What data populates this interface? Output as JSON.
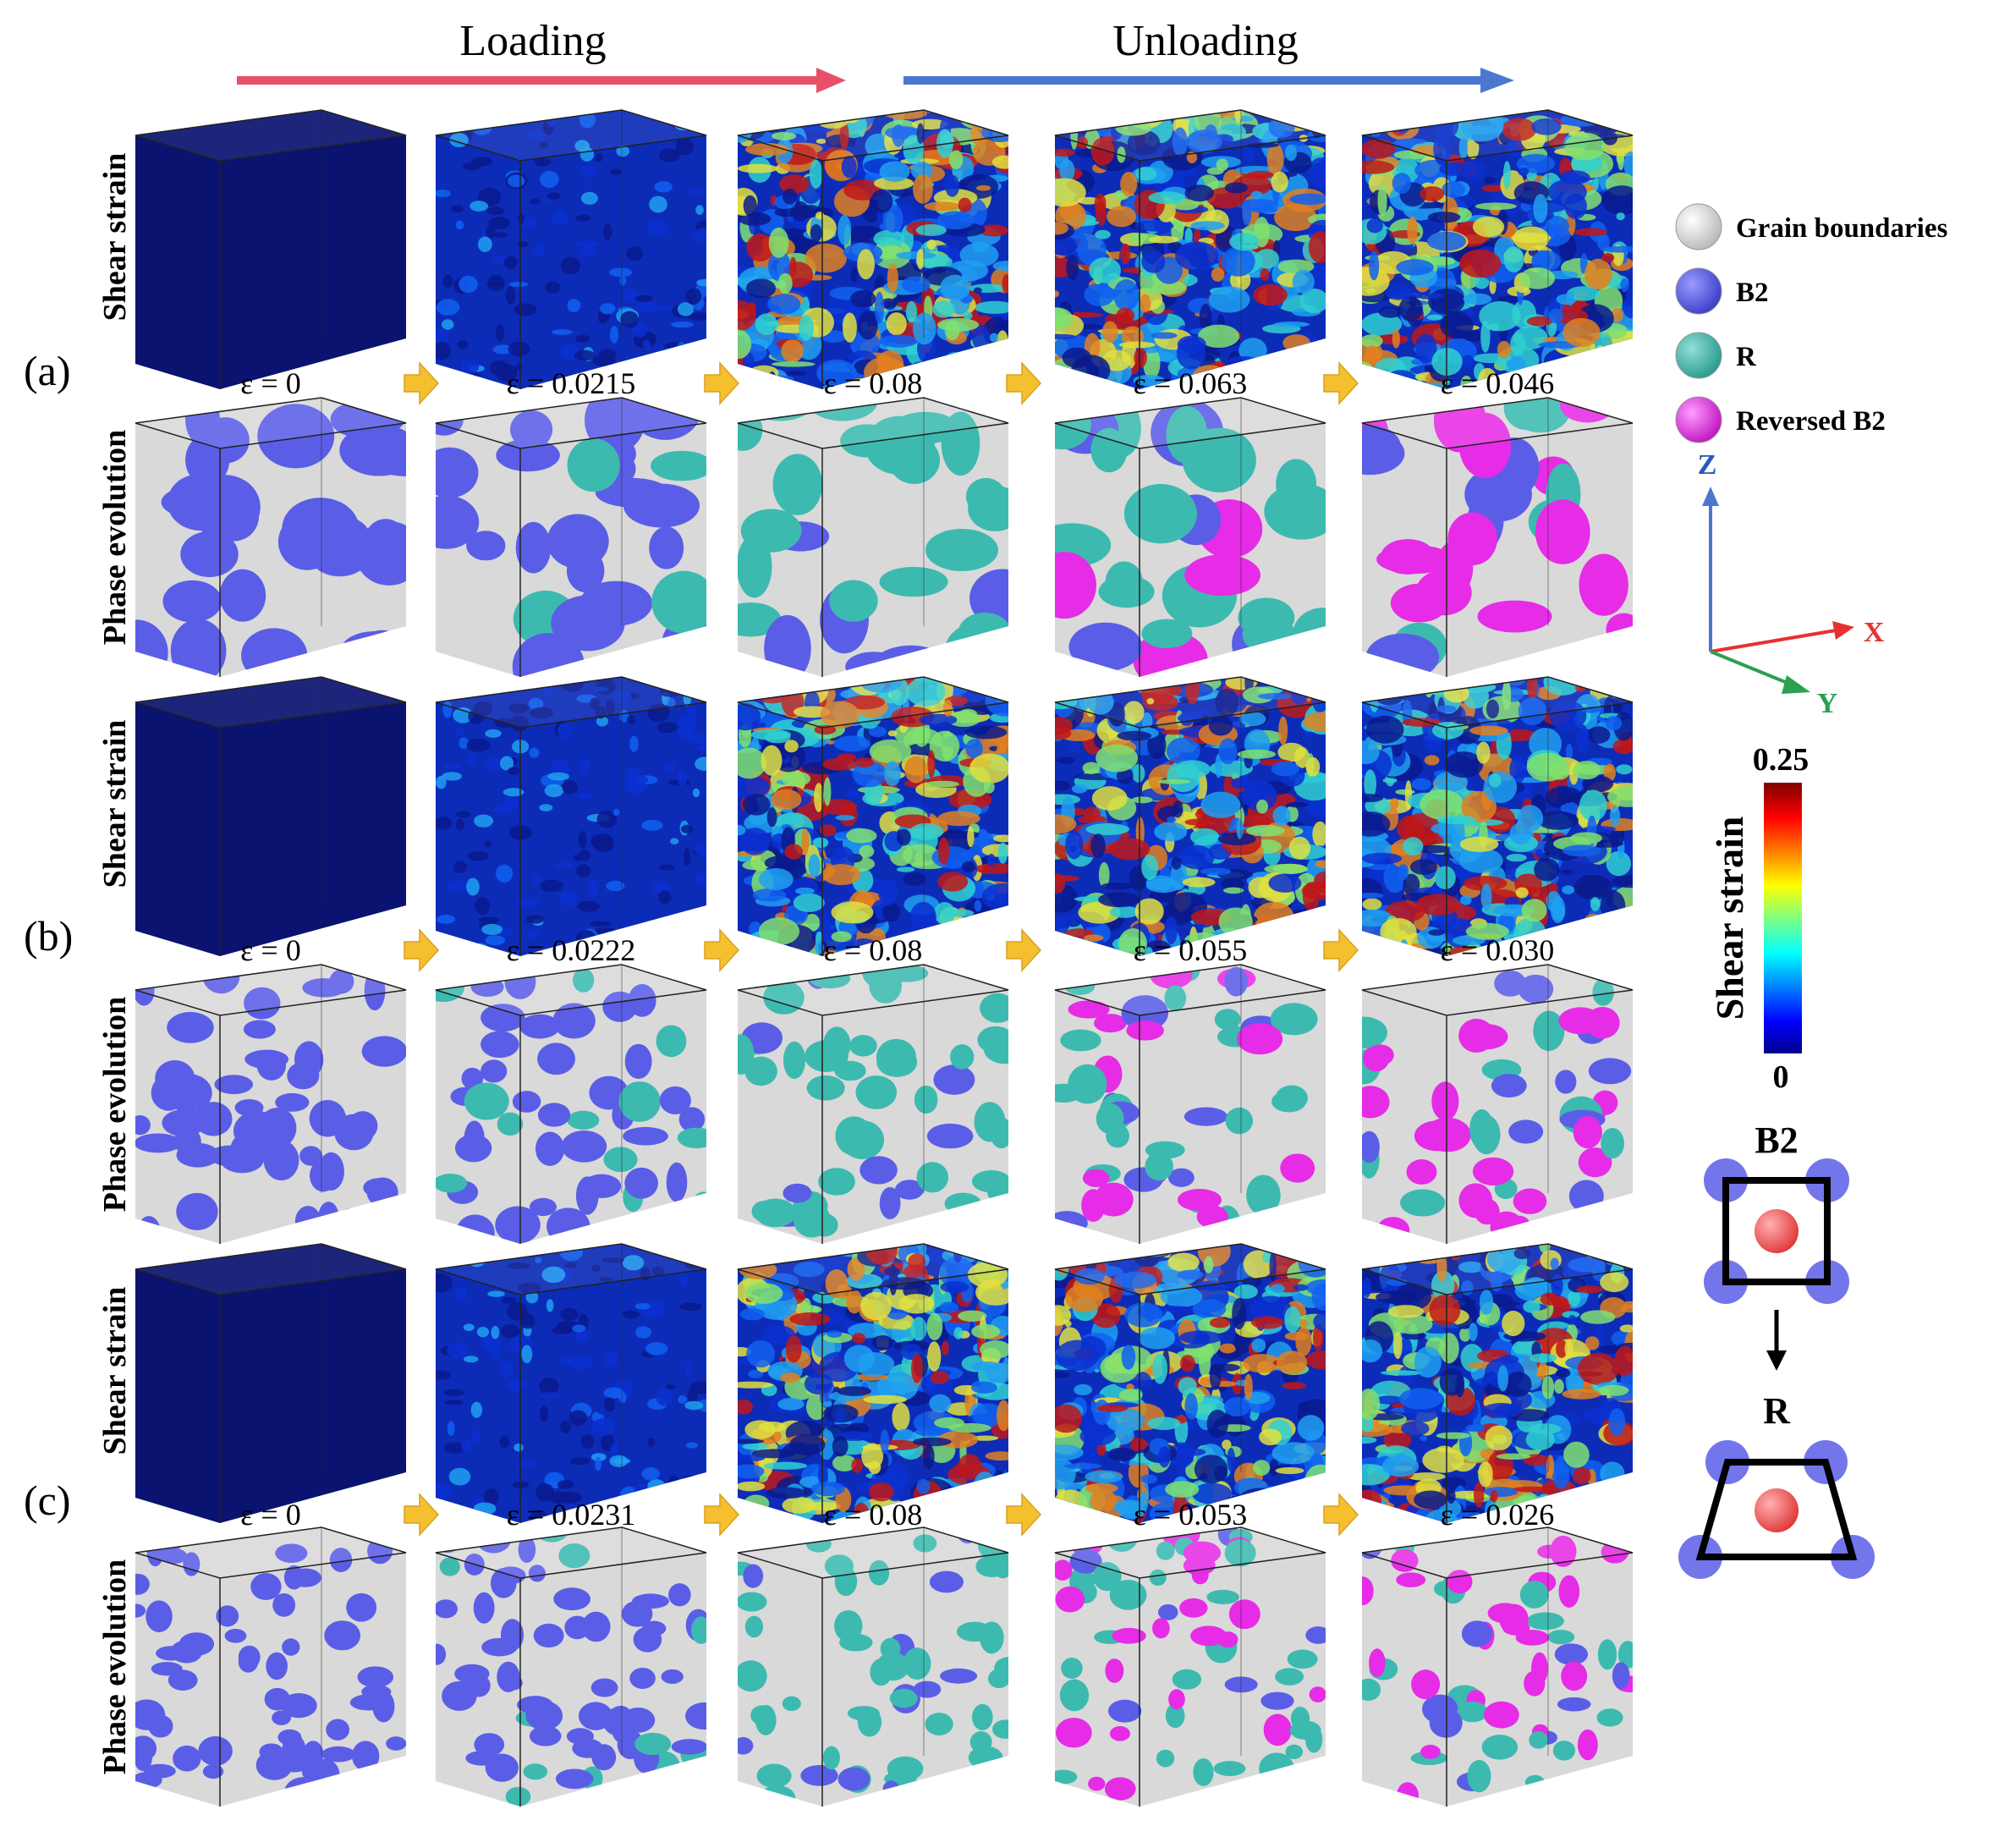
{
  "header": {
    "loading": "Loading",
    "unloading": "Unloading"
  },
  "row_labels": {
    "shear": "Shear strain",
    "phase": "Phase evolution"
  },
  "panels": [
    {
      "label": "(a)",
      "strains": [
        "ε = 0",
        "ε = 0.0215",
        "ε = 0.08",
        "ε = 0.063",
        "ε = 0.046"
      ]
    },
    {
      "label": "(b)",
      "strains": [
        "ε = 0",
        "ε = 0.0222",
        "ε = 0.08",
        "ε = 0.055",
        "ε = 0.030"
      ]
    },
    {
      "label": "(c)",
      "strains": [
        "ε = 0",
        "ε = 0.0231",
        "ε = 0.08",
        "ε = 0.053",
        "ε = 0.026"
      ]
    }
  ],
  "legend": [
    {
      "label": "Grain boundaries",
      "color": "#e6e6e6"
    },
    {
      "label": "B2",
      "color": "#5a5ee6"
    },
    {
      "label": "R",
      "color": "#3cbab0"
    },
    {
      "label": "Reversed B2",
      "color": "#e62ce6"
    }
  ],
  "axes": {
    "z": "Z",
    "x": "X",
    "y": "Y"
  },
  "colorbar": {
    "title": "Shear strain",
    "max": "0.25",
    "min": "0"
  },
  "schematic": {
    "top": "B2",
    "bottom": "R"
  },
  "colors": {
    "loading_arrow": "#e8506a",
    "unloading_arrow": "#4a78d0",
    "step_arrow": "#f5c030",
    "grain_boundary": "#d9d9d9",
    "b2": "#5a5ee6",
    "r": "#3cbab0",
    "reversed_b2": "#e62ce6",
    "strain_low": "#0a1a78"
  }
}
